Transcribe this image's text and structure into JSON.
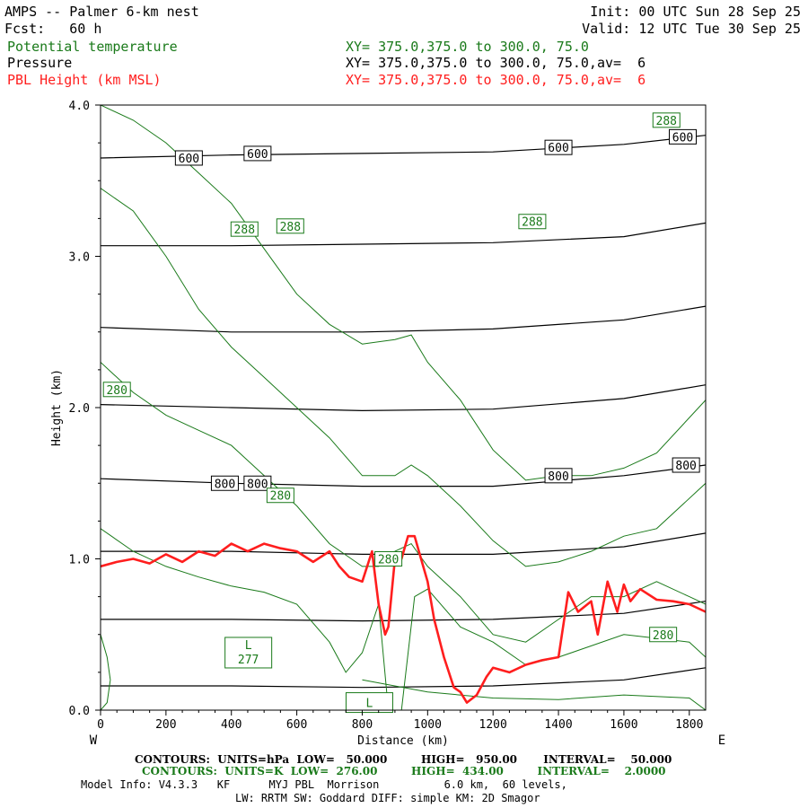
{
  "header": {
    "title": "AMPS -- Palmer 6-km nest",
    "fcst": "Fcst:   60 h",
    "init": "Init: 00 UTC Sun 28 Sep 25",
    "valid": "Valid: 12 UTC Tue 30 Sep 25",
    "field1": "Potential temperature",
    "field1_xy": "XY= 375.0,375.0 to 300.0, 75.0",
    "field2": "Pressure",
    "field2_xy": "XY= 375.0,375.0 to 300.0, 75.0,av=  6",
    "field3": "PBL Height (km MSL)",
    "field3_xy": "XY= 375.0,375.0 to 300.0, 75.0,av=  6"
  },
  "footer": {
    "contours_p": "CONTOURS:  UNITS=hPa  LOW=   50.000         HIGH=   950.00       INTERVAL=    50.000",
    "contours_t": "CONTOURS:  UNITS=K  LOW=  276.00         HIGH=  434.00         INTERVAL=    2.0000",
    "model1": "Model Info: V4.3.3   KF      MYJ PBL  Morrison          6.0 km,  60 levels,",
    "model2": "LW: RRTM SW: Goddard DIFF: simple KM: 2D Smagor"
  },
  "colors": {
    "theta": "#1a7a1a",
    "pressure": "#000000",
    "pbl": "#ff1e1e"
  },
  "chart_data": {
    "type": "line",
    "title": "AMPS -- Palmer 6-km nest",
    "xlabel": "Distance (km)",
    "ylabel": "Height (km)",
    "xlim": [
      0,
      1850
    ],
    "ylim": [
      0,
      4
    ],
    "x_ticks": [
      0,
      200,
      400,
      600,
      800,
      1000,
      1200,
      1400,
      1600,
      1800
    ],
    "y_ticks": [
      "0.0",
      "1.0",
      "2.0",
      "3.0",
      "4.0"
    ],
    "x_left_label": "W",
    "x_right_label": "E",
    "pressure_contours": [
      {
        "label": "600",
        "x": [
          0,
          400,
          800,
          1200,
          1600,
          1850
        ],
        "y": [
          3.65,
          3.67,
          3.68,
          3.69,
          3.74,
          3.8
        ]
      },
      {
        "label": "",
        "x": [
          0,
          400,
          800,
          1200,
          1600,
          1850
        ],
        "y": [
          3.07,
          3.07,
          3.08,
          3.09,
          3.13,
          3.22
        ]
      },
      {
        "label": "",
        "x": [
          0,
          400,
          800,
          1200,
          1600,
          1850
        ],
        "y": [
          2.53,
          2.5,
          2.5,
          2.52,
          2.58,
          2.67
        ]
      },
      {
        "label": "",
        "x": [
          0,
          400,
          800,
          1200,
          1600,
          1850
        ],
        "y": [
          2.02,
          2.0,
          1.98,
          1.99,
          2.06,
          2.15
        ]
      },
      {
        "label": "800",
        "x": [
          0,
          400,
          800,
          1200,
          1600,
          1850
        ],
        "y": [
          1.53,
          1.5,
          1.48,
          1.48,
          1.55,
          1.62
        ]
      },
      {
        "label": "",
        "x": [
          0,
          400,
          800,
          1200,
          1600,
          1850
        ],
        "y": [
          1.05,
          1.05,
          1.03,
          1.03,
          1.08,
          1.17
        ]
      },
      {
        "label": "",
        "x": [
          0,
          400,
          800,
          1200,
          1600,
          1850
        ],
        "y": [
          0.6,
          0.6,
          0.59,
          0.6,
          0.64,
          0.72
        ]
      },
      {
        "label": "",
        "x": [
          0,
          400,
          800,
          1200,
          1600,
          1850
        ],
        "y": [
          0.16,
          0.16,
          0.15,
          0.16,
          0.2,
          0.28
        ]
      }
    ],
    "pressure_labels": [
      {
        "text": "600",
        "x": 270,
        "y": 3.65
      },
      {
        "text": "600",
        "x": 480,
        "y": 3.68
      },
      {
        "text": "600",
        "x": 1400,
        "y": 3.72
      },
      {
        "text": "600",
        "x": 1780,
        "y": 3.79
      },
      {
        "text": "800",
        "x": 380,
        "y": 1.5
      },
      {
        "text": "800",
        "x": 480,
        "y": 1.5
      },
      {
        "text": "800",
        "x": 1400,
        "y": 1.55
      },
      {
        "text": "800",
        "x": 1790,
        "y": 1.62
      }
    ],
    "theta_contours": [
      {
        "x": [
          0,
          100,
          200,
          300,
          400,
          500,
          600,
          700,
          800,
          900,
          950,
          1000,
          1100,
          1200,
          1300,
          1400,
          1500,
          1600,
          1700,
          1850
        ],
        "y": [
          4.0,
          3.9,
          3.75,
          3.55,
          3.35,
          3.05,
          2.75,
          2.55,
          2.42,
          2.45,
          2.48,
          2.3,
          2.05,
          1.72,
          1.52,
          1.55,
          1.55,
          1.6,
          1.7,
          2.05
        ]
      },
      {
        "x": [
          0,
          100,
          200,
          300,
          400,
          500,
          600,
          700,
          800,
          900,
          950,
          1000,
          1100,
          1200,
          1300,
          1400,
          1500,
          1600,
          1700,
          1850
        ],
        "y": [
          3.45,
          3.3,
          3.0,
          2.65,
          2.4,
          2.2,
          2.0,
          1.8,
          1.55,
          1.55,
          1.62,
          1.55,
          1.35,
          1.12,
          0.95,
          0.98,
          1.05,
          1.15,
          1.2,
          1.5
        ]
      },
      {
        "x": [
          0,
          100,
          200,
          300,
          400,
          500,
          600,
          700,
          800,
          850,
          900,
          950,
          1000,
          1100,
          1200,
          1300,
          1400,
          1500,
          1600,
          1700,
          1800,
          1850
        ],
        "y": [
          2.3,
          2.1,
          1.95,
          1.85,
          1.75,
          1.55,
          1.35,
          1.1,
          0.95,
          0.95,
          1.05,
          1.1,
          0.95,
          0.75,
          0.5,
          0.45,
          0.6,
          0.75,
          0.75,
          0.85,
          0.75,
          0.7
        ]
      },
      {
        "x": [
          0,
          100,
          200,
          300,
          400,
          500,
          600,
          700,
          750,
          800,
          850,
          880,
          920,
          960,
          1000,
          1100,
          1200,
          1300,
          1400,
          1600,
          1800,
          1850
        ],
        "y": [
          1.2,
          1.05,
          0.95,
          0.88,
          0.82,
          0.78,
          0.7,
          0.45,
          0.25,
          0.38,
          0.7,
          0.0,
          0.0,
          0.75,
          0.8,
          0.55,
          0.45,
          0.3,
          0.35,
          0.5,
          0.45,
          0.35
        ]
      },
      {
        "x": [
          800,
          1000,
          1200,
          1400,
          1600,
          1800,
          1850
        ],
        "y": [
          0.2,
          0.12,
          0.08,
          0.07,
          0.1,
          0.08,
          0.0
        ]
      },
      {
        "x": [
          0,
          20,
          30,
          20,
          0
        ],
        "y": [
          0.5,
          0.35,
          0.2,
          0.05,
          0.0
        ]
      }
    ],
    "theta_labels": [
      {
        "text": "288",
        "x": 1730,
        "y": 3.9
      },
      {
        "text": "288",
        "x": 440,
        "y": 3.18
      },
      {
        "text": "288",
        "x": 580,
        "y": 3.2
      },
      {
        "text": "288",
        "x": 1320,
        "y": 3.23
      },
      {
        "text": "280",
        "x": 50,
        "y": 2.12
      },
      {
        "text": "280",
        "x": 550,
        "y": 1.42
      },
      {
        "text": "280",
        "x": 880,
        "y": 1.0
      },
      {
        "text": "280",
        "x": 1720,
        "y": 0.5
      }
    ],
    "lows": [
      {
        "symbol": "L",
        "value": "277",
        "x": 430,
        "y": 0.38
      },
      {
        "symbol": "L",
        "value": "",
        "x": 800,
        "y": 0.05
      }
    ],
    "pbl_height": {
      "x": [
        0,
        50,
        100,
        150,
        200,
        250,
        300,
        350,
        400,
        450,
        500,
        550,
        600,
        650,
        700,
        730,
        760,
        800,
        830,
        850,
        870,
        880,
        900,
        920,
        940,
        960,
        980,
        1000,
        1020,
        1050,
        1080,
        1100,
        1120,
        1150,
        1180,
        1200,
        1250,
        1300,
        1350,
        1400,
        1430,
        1460,
        1500,
        1520,
        1550,
        1580,
        1600,
        1620,
        1650,
        1700,
        1750,
        1800,
        1850
      ],
      "y": [
        0.95,
        0.98,
        1.0,
        0.97,
        1.03,
        0.98,
        1.05,
        1.02,
        1.1,
        1.05,
        1.1,
        1.07,
        1.05,
        0.98,
        1.05,
        0.95,
        0.88,
        0.85,
        1.05,
        0.7,
        0.5,
        0.55,
        1.0,
        1.0,
        1.15,
        1.15,
        1.0,
        0.85,
        0.6,
        0.35,
        0.15,
        0.12,
        0.05,
        0.1,
        0.22,
        0.28,
        0.25,
        0.3,
        0.33,
        0.35,
        0.78,
        0.65,
        0.72,
        0.5,
        0.85,
        0.65,
        0.83,
        0.72,
        0.8,
        0.73,
        0.72,
        0.7,
        0.65
      ]
    }
  }
}
